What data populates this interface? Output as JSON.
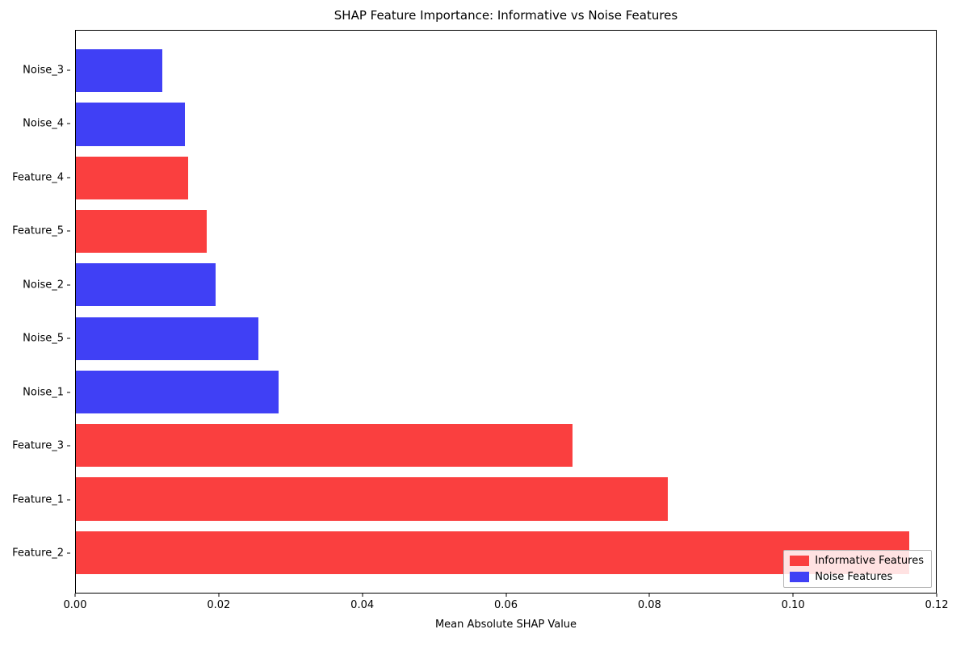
{
  "chart_data": {
    "type": "bar",
    "orientation": "horizontal",
    "title": "SHAP Feature Importance: Informative vs Noise Features",
    "xlabel": "Mean Absolute SHAP Value",
    "ylabel": "",
    "xlim": [
      0,
      0.12
    ],
    "grid": false,
    "legend_position": "lower right",
    "x_ticks": [
      {
        "value": 0.0,
        "label": "0.00"
      },
      {
        "value": 0.02,
        "label": "0.02"
      },
      {
        "value": 0.04,
        "label": "0.04"
      },
      {
        "value": 0.06,
        "label": "0.06"
      },
      {
        "value": 0.08,
        "label": "0.08"
      },
      {
        "value": 0.1,
        "label": "0.10"
      },
      {
        "value": 0.12,
        "label": "0.12"
      }
    ],
    "bars_top_to_bottom": [
      {
        "label": "Noise_3",
        "value": 0.012,
        "group": "noise"
      },
      {
        "label": "Noise_4",
        "value": 0.0152,
        "group": "noise"
      },
      {
        "label": "Feature_4",
        "value": 0.0157,
        "group": "informative"
      },
      {
        "label": "Feature_5",
        "value": 0.0183,
        "group": "informative"
      },
      {
        "label": "Noise_2",
        "value": 0.0195,
        "group": "noise"
      },
      {
        "label": "Noise_5",
        "value": 0.0255,
        "group": "noise"
      },
      {
        "label": "Noise_1",
        "value": 0.0283,
        "group": "noise"
      },
      {
        "label": "Feature_3",
        "value": 0.0693,
        "group": "informative"
      },
      {
        "label": "Feature_1",
        "value": 0.0826,
        "group": "informative"
      },
      {
        "label": "Feature_2",
        "value": 0.1163,
        "group": "informative"
      }
    ],
    "groups": {
      "informative": {
        "label": "Informative Features",
        "color": "#fa3f3f"
      },
      "noise": {
        "label": "Noise Features",
        "color": "#4040f5"
      }
    },
    "legend": {
      "entries": [
        {
          "label": "Informative Features",
          "group": "informative"
        },
        {
          "label": "Noise Features",
          "group": "noise"
        }
      ]
    }
  }
}
